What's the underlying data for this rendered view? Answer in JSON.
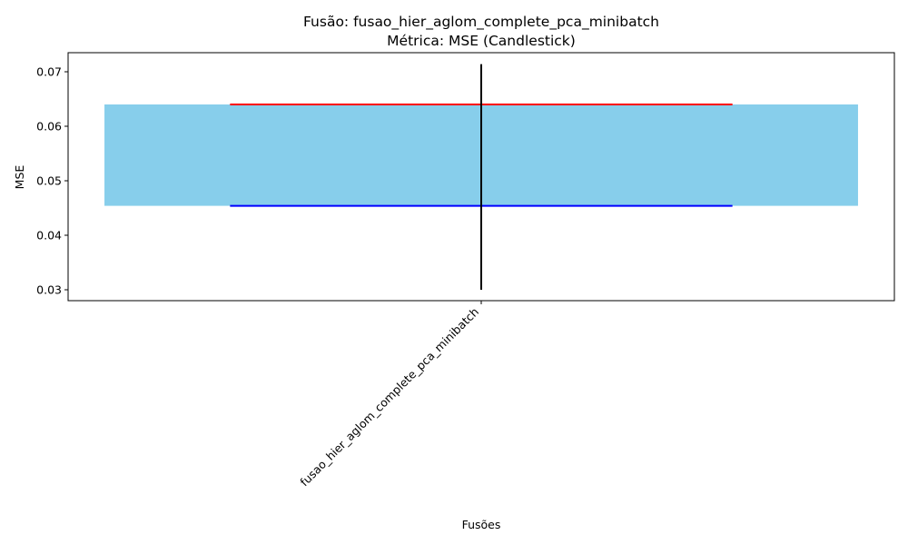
{
  "chart_data": {
    "type": "bar",
    "title": "Fusão: fusao_hier_aglom_complete_pca_minibatch",
    "subtitle": "Métrica: MSE (Candlestick)",
    "xlabel": "Fusões",
    "ylabel": "MSE",
    "categories": [
      "fusao_hier_aglom_complete_pca_minibatch"
    ],
    "candles": [
      {
        "category": "fusao_hier_aglom_complete_pca_minibatch",
        "open": 0.0454,
        "close": 0.064,
        "low": 0.03,
        "high": 0.0714
      }
    ],
    "ylim": [
      0.028,
      0.0735
    ],
    "yticks": [
      0.03,
      0.04,
      0.05,
      0.06,
      0.07
    ],
    "ytick_labels": [
      "0.03",
      "0.04",
      "0.05",
      "0.06",
      "0.07"
    ],
    "grid": false,
    "colors": {
      "body": "#87ceeb",
      "high_line": "#ff0000",
      "low_line": "#0000ff",
      "wick": "#000000"
    }
  }
}
